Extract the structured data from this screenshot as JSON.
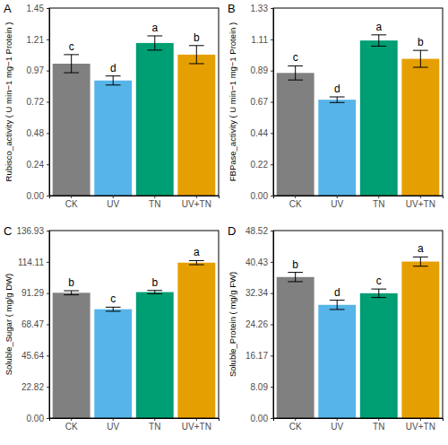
{
  "chart_data": [
    {
      "type": "bar",
      "title": "A",
      "y_label": "Rubisco_activity ( U min−1 mg−1 Protein )",
      "categories": [
        "CK",
        "UV",
        "TN",
        "UV+TN"
      ],
      "values": [
        1.02,
        0.89,
        1.18,
        1.09
      ],
      "errors": [
        0.07,
        0.035,
        0.055,
        0.07
      ],
      "letters": [
        "c",
        "d",
        "a",
        "b"
      ],
      "colors": [
        "#808080",
        "#56b4e9",
        "#009e73",
        "#e69f00"
      ],
      "ylim": [
        0,
        1.45
      ],
      "yticks": [
        {
          "value": 0,
          "label": "0.00"
        },
        {
          "value": 0.2417,
          "label": "0.24"
        },
        {
          "value": 0.4833,
          "label": "0.48"
        },
        {
          "value": 0.7249,
          "label": "0.72"
        },
        {
          "value": 0.9667,
          "label": "0.97"
        },
        {
          "value": 1.2083,
          "label": "1.21"
        },
        {
          "value": 1.45,
          "label": "1.45"
        }
      ],
      "grid": false
    },
    {
      "type": "bar",
      "title": "B",
      "y_label": "FBPase_activity ( U min−1 mg−1 Protein )",
      "categories": [
        "CK",
        "UV",
        "TN",
        "UV+TN"
      ],
      "values": [
        0.87,
        0.68,
        1.1,
        0.97
      ],
      "errors": [
        0.05,
        0.02,
        0.04,
        0.06
      ],
      "letters": [
        "c",
        "d",
        "a",
        "b"
      ],
      "colors": [
        "#808080",
        "#56b4e9",
        "#009e73",
        "#e69f00"
      ],
      "ylim": [
        0,
        1.33
      ],
      "yticks": [
        {
          "value": 0,
          "label": "0.00"
        },
        {
          "value": 0.2217,
          "label": "0.22"
        },
        {
          "value": 0.4433,
          "label": "0.44"
        },
        {
          "value": 0.665,
          "label": "0.67"
        },
        {
          "value": 0.8867,
          "label": "0.89"
        },
        {
          "value": 1.1083,
          "label": "1.11"
        },
        {
          "value": 1.33,
          "label": "1.33"
        }
      ],
      "grid": false
    },
    {
      "type": "bar",
      "title": "C",
      "y_label": "Soluble_Sugar ( mg/g DW)",
      "categories": [
        "CK",
        "UV",
        "TN",
        "UV+TN"
      ],
      "values": [
        91.5,
        79.5,
        92.0,
        113.5
      ],
      "errors": [
        1.5,
        1.5,
        1.2,
        1.5
      ],
      "letters": [
        "b",
        "c",
        "b",
        "a"
      ],
      "colors": [
        "#808080",
        "#56b4e9",
        "#009e73",
        "#e69f00"
      ],
      "ylim": [
        0,
        136.93
      ],
      "yticks": [
        {
          "value": 0,
          "label": "0.00"
        },
        22.82,
        45.64,
        68.47,
        91.29,
        114.11,
        136.93
      ],
      "grid": false
    },
    {
      "type": "bar",
      "title": "D",
      "y_label": "Soluble_Protein ( mg/g FW)",
      "categories": [
        "CK",
        "UV",
        "TN",
        "UV+TN"
      ],
      "values": [
        36.5,
        29.3,
        32.3,
        40.5
      ],
      "errors": [
        1.2,
        1.2,
        1.1,
        1.2
      ],
      "letters": [
        "b",
        "d",
        "c",
        "a"
      ],
      "colors": [
        "#808080",
        "#56b4e9",
        "#009e73",
        "#e69f00"
      ],
      "ylim": [
        0,
        48.52
      ],
      "yticks": [
        {
          "value": 0,
          "label": "0.00"
        },
        8.09,
        16.17,
        24.26,
        32.34,
        40.43,
        48.52
      ],
      "grid": false
    }
  ]
}
